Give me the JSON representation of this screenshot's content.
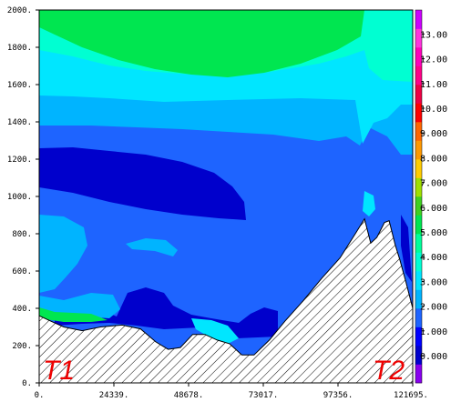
{
  "chart_data": {
    "type": "contour",
    "x_ticks": [
      "0.",
      "24339.",
      "48678.",
      "73017.",
      "97356.",
      "121695."
    ],
    "y_ticks": [
      "0.",
      "200.",
      "400.",
      "600.",
      "800.",
      "1000.",
      "1200.",
      "1400.",
      "1600.",
      "1800.",
      "2000."
    ],
    "xlim": [
      0,
      121695
    ],
    "ylim": [
      0,
      2000
    ],
    "colorbar": {
      "labels": [
        "0.000",
        "1.000",
        "2.000",
        "3.000",
        "4.000",
        "5.000",
        "6.000",
        "7.000",
        "8.000",
        "9.000",
        "10.00",
        "11.00",
        "12.00",
        "13.00"
      ],
      "colors": [
        "#8800ee",
        "#0000cc",
        "#0000ff",
        "#1e64ff",
        "#00b4ff",
        "#00e6ff",
        "#00ffd2",
        "#00ff9a",
        "#00e650",
        "#40d020",
        "#a0e000",
        "#ffcc00",
        "#ff9900",
        "#ff6600",
        "#ff0000",
        "#ee0044",
        "#ff0088",
        "#ff00bb",
        "#ff33dd",
        "#cc00ff"
      ]
    },
    "annotations": {
      "left": "T1",
      "right": "T2"
    },
    "terrain_profile": {
      "x": [
        0,
        4000,
        8000,
        14000,
        20000,
        27000,
        33000,
        38000,
        42000,
        46000,
        50000,
        54000,
        58000,
        62000,
        66000,
        70000,
        75000,
        80000,
        86000,
        92000,
        98000,
        103000,
        106000,
        108000,
        110000,
        112500,
        114000,
        116000,
        117500,
        119500,
        121695
      ],
      "y": [
        360,
        330,
        300,
        280,
        300,
        310,
        290,
        220,
        180,
        190,
        260,
        260,
        230,
        210,
        150,
        150,
        230,
        330,
        440,
        560,
        670,
        800,
        880,
        750,
        780,
        860,
        870,
        740,
        660,
        540,
        400
      ]
    }
  }
}
